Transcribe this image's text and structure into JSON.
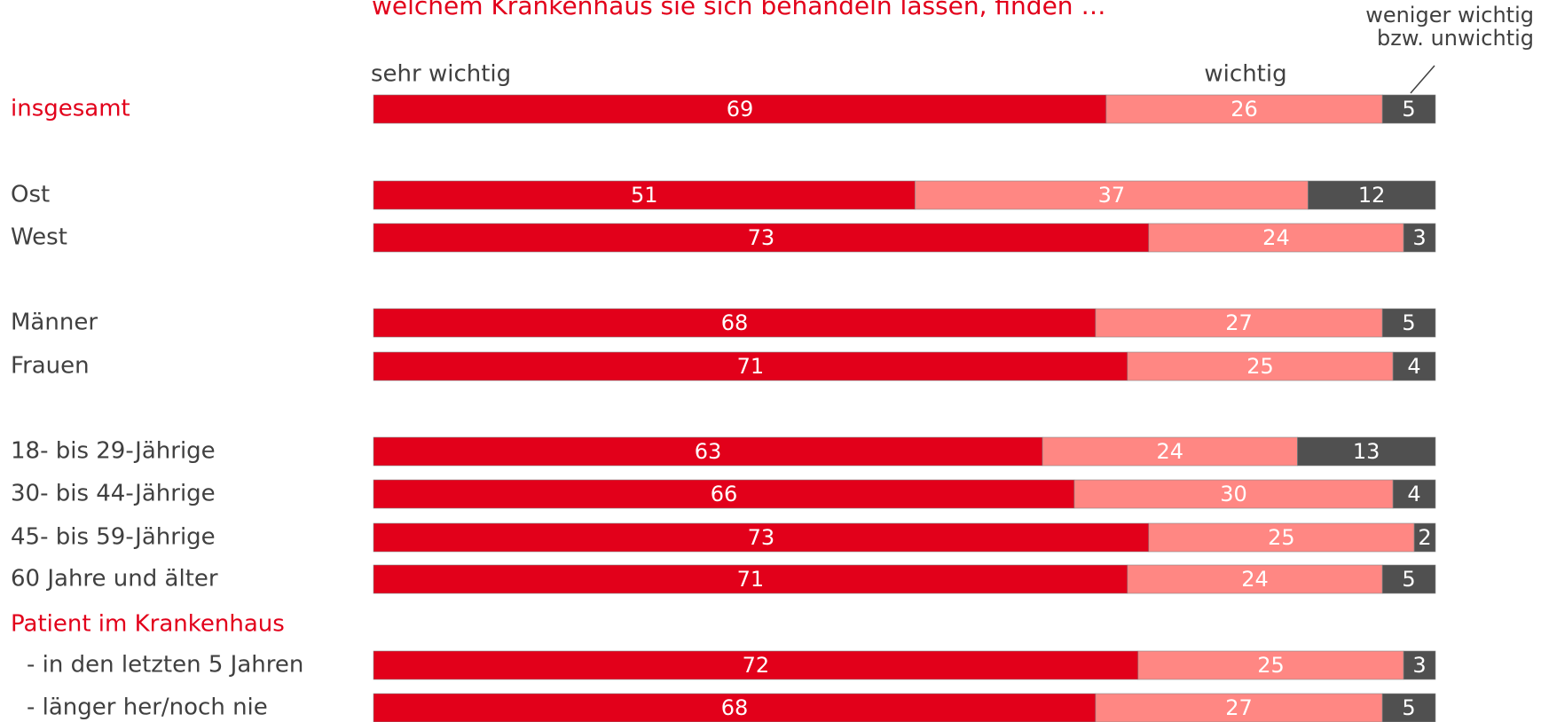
{
  "chart_data": {
    "type": "bar",
    "orientation": "horizontal",
    "stacked": true,
    "title": "welchem Krankenhaus sie sich behandeln lassen, finden …",
    "categories": [
      "insgesamt",
      "Ost",
      "West",
      "Männer",
      "Frauen",
      "18- bis 29-Jährige",
      "30- bis 44-Jährige",
      "45- bis 59-Jährige",
      "60 Jahre und älter",
      "- in den letzten 5 Jahren",
      "- länger her/noch nie"
    ],
    "group_label": "Patient im Krankenhaus",
    "series": [
      {
        "name": "sehr wichtig",
        "color": "#e2001a",
        "values": [
          69,
          51,
          73,
          68,
          71,
          63,
          66,
          73,
          71,
          72,
          68
        ]
      },
      {
        "name": "wichtig",
        "color": "#ff8783",
        "values": [
          26,
          37,
          24,
          27,
          25,
          24,
          30,
          25,
          24,
          25,
          27
        ]
      },
      {
        "name": "weniger wichtig bzw. unwichtig",
        "color": "#505050",
        "values": [
          5,
          12,
          3,
          5,
          4,
          13,
          4,
          2,
          5,
          3,
          5
        ]
      }
    ],
    "xlim": [
      0,
      100
    ]
  }
}
